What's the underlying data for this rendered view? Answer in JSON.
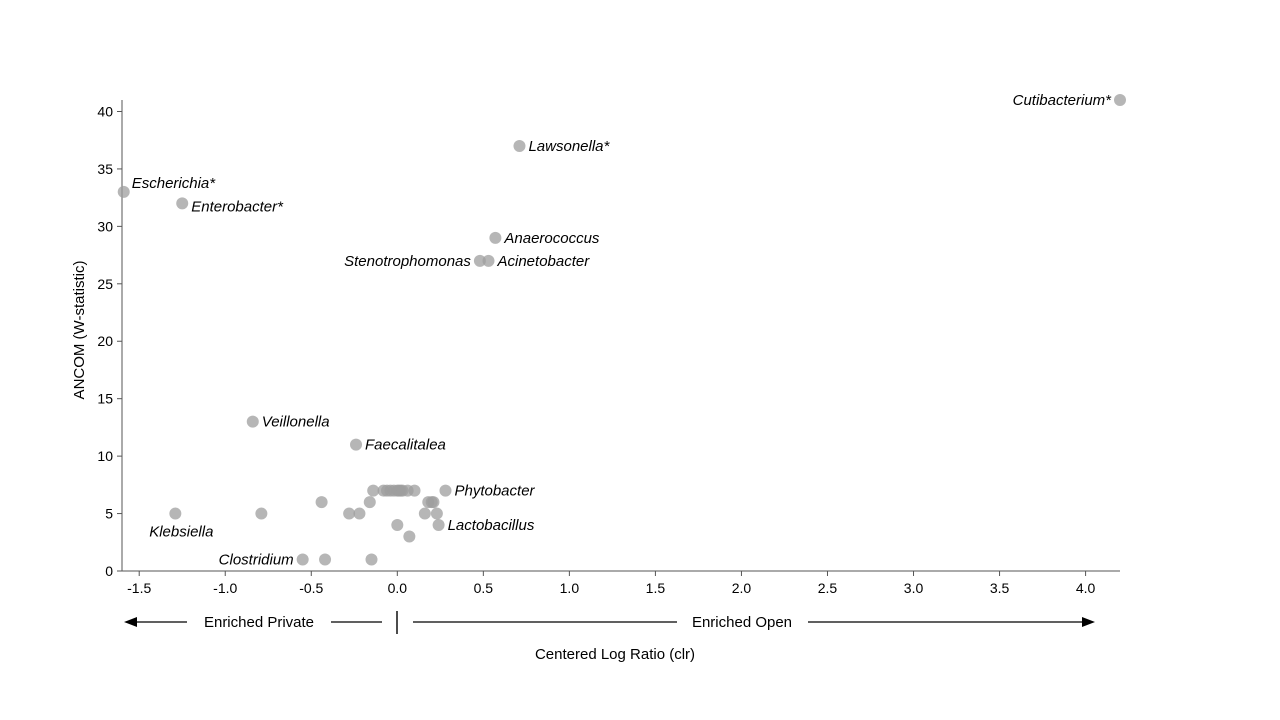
{
  "chart_data": {
    "type": "scatter",
    "xlabel": "Centered Log Ratio (clr)",
    "ylabel": "ANCOM (W-statistic)",
    "xlim": [
      -1.6,
      4.2
    ],
    "ylim": [
      0,
      41
    ],
    "x_ticks": [
      "-1.5",
      "-1.0",
      "-0.5",
      "0.0",
      "0.5",
      "1.0",
      "1.5",
      "2.0",
      "2.5",
      "3.0",
      "3.5",
      "4.0"
    ],
    "x_tick_values": [
      -1.5,
      -1.0,
      -0.5,
      0.0,
      0.5,
      1.0,
      1.5,
      2.0,
      2.5,
      3.0,
      3.5,
      4.0
    ],
    "y_ticks": [
      "0",
      "5",
      "10",
      "15",
      "20",
      "25",
      "30",
      "35",
      "40"
    ],
    "y_tick_values": [
      0,
      5,
      10,
      15,
      20,
      25,
      30,
      35,
      40
    ],
    "grid": false,
    "point_color": "#9e9e9e",
    "point_opacity": 0.75,
    "points": [
      {
        "x": 4.2,
        "y": 41,
        "label": "Cutibacterium*",
        "label_pos": "left"
      },
      {
        "x": 0.71,
        "y": 37,
        "label": "Lawsonella*",
        "label_pos": "right"
      },
      {
        "x": -1.59,
        "y": 33,
        "label": "Escherichia*",
        "label_pos": "right-up"
      },
      {
        "x": -1.25,
        "y": 32,
        "label": "Enterobacter*",
        "label_pos": "right-down"
      },
      {
        "x": 0.57,
        "y": 29,
        "label": "Anaerococcus",
        "label_pos": "right"
      },
      {
        "x": 0.48,
        "y": 27,
        "label": "Stenotrophomonas",
        "label_pos": "left"
      },
      {
        "x": 0.53,
        "y": 27,
        "label": "Acinetobacter",
        "label_pos": "right"
      },
      {
        "x": -0.84,
        "y": 13,
        "label": "Veillonella",
        "label_pos": "right"
      },
      {
        "x": -0.24,
        "y": 11,
        "label": "Faecalitalea",
        "label_pos": "right"
      },
      {
        "x": 0.28,
        "y": 7,
        "label": "Phytobacter",
        "label_pos": "right"
      },
      {
        "x": 0.24,
        "y": 4,
        "label": "Lactobacillus",
        "label_pos": "right"
      },
      {
        "x": -1.29,
        "y": 5,
        "label": "Klebsiella",
        "label_pos": "below"
      },
      {
        "x": -0.55,
        "y": 1,
        "label": "Clostridium",
        "label_pos": "left"
      },
      {
        "x": -0.79,
        "y": 5,
        "label": ""
      },
      {
        "x": -0.44,
        "y": 6,
        "label": ""
      },
      {
        "x": -0.28,
        "y": 5,
        "label": ""
      },
      {
        "x": -0.22,
        "y": 5,
        "label": ""
      },
      {
        "x": -0.16,
        "y": 6,
        "label": ""
      },
      {
        "x": -0.14,
        "y": 7,
        "label": ""
      },
      {
        "x": -0.08,
        "y": 7,
        "label": ""
      },
      {
        "x": -0.06,
        "y": 7,
        "label": ""
      },
      {
        "x": -0.04,
        "y": 7,
        "label": ""
      },
      {
        "x": -0.02,
        "y": 7,
        "label": ""
      },
      {
        "x": 0.0,
        "y": 7,
        "label": ""
      },
      {
        "x": 0.01,
        "y": 7,
        "label": ""
      },
      {
        "x": 0.02,
        "y": 7,
        "label": ""
      },
      {
        "x": 0.03,
        "y": 7,
        "label": ""
      },
      {
        "x": 0.06,
        "y": 7,
        "label": ""
      },
      {
        "x": 0.1,
        "y": 7,
        "label": ""
      },
      {
        "x": 0.18,
        "y": 6,
        "label": ""
      },
      {
        "x": 0.2,
        "y": 6,
        "label": ""
      },
      {
        "x": 0.21,
        "y": 6,
        "label": ""
      },
      {
        "x": 0.16,
        "y": 5,
        "label": ""
      },
      {
        "x": 0.23,
        "y": 5,
        "label": ""
      },
      {
        "x": 0.0,
        "y": 4,
        "label": ""
      },
      {
        "x": 0.07,
        "y": 3,
        "label": ""
      },
      {
        "x": -0.42,
        "y": 1,
        "label": ""
      },
      {
        "x": -0.15,
        "y": 1,
        "label": ""
      }
    ],
    "direction": {
      "left_label": "Enriched Private",
      "right_label": "Enriched Open"
    }
  }
}
